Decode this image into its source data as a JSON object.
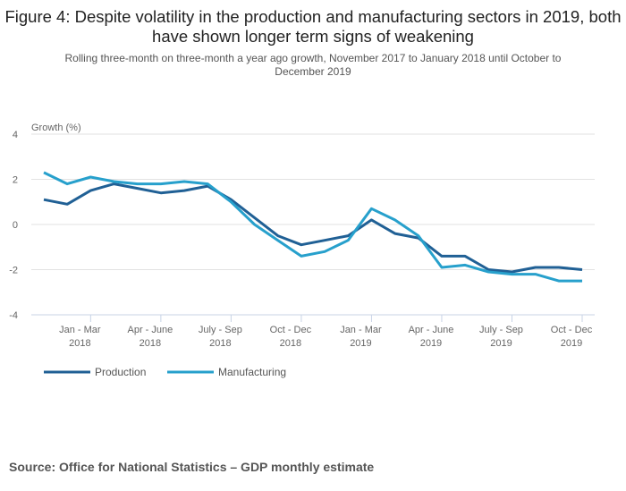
{
  "title": "Figure 4: Despite volatility in the production and manufacturing sectors in 2019, both have shown longer term signs of weakening",
  "subtitle": "Rolling three-month on three-month a year ago growth, November 2017 to January 2018 until October to December 2019",
  "source": "Source: Office for National Statistics – GDP monthly estimate",
  "chart_data": {
    "type": "line",
    "title": "Figure 4: Despite volatility in the production and manufacturing sectors in 2019, both have shown longer term signs of weakening",
    "ylabel": "Growth (%)",
    "ylim": [
      -4,
      4
    ],
    "yticks": [
      4,
      2,
      0,
      -2,
      -4
    ],
    "grid": true,
    "legend_position": "bottom-left",
    "x": [
      "Nov - Jan 2018",
      "Dec - Feb 2018",
      "Jan - Mar 2018",
      "Feb - Apr 2018",
      "Mar - May 2018",
      "Apr - June 2018",
      "May - July 2018",
      "June - Aug 2018",
      "July - Sep 2018",
      "Aug - Oct 2018",
      "Sep - Nov 2018",
      "Oct - Dec 2018",
      "Nov - Jan 2019",
      "Dec - Feb 2019",
      "Jan - Mar 2019",
      "Feb - Apr 2019",
      "Mar - May 2019",
      "Apr - June 2019",
      "May - July 2019",
      "June - Aug 2019",
      "July - Sep 2019",
      "Aug - Oct 2019",
      "Sep - Nov 2019",
      "Oct - Dec 2019"
    ],
    "xticks": [
      {
        "index": 2,
        "line1": "Jan - Mar",
        "line2": "2018"
      },
      {
        "index": 5,
        "line1": "Apr - June",
        "line2": "2018"
      },
      {
        "index": 8,
        "line1": "July - Sep",
        "line2": "2018"
      },
      {
        "index": 11,
        "line1": "Oct - Dec",
        "line2": "2018"
      },
      {
        "index": 14,
        "line1": "Jan - Mar",
        "line2": "2019"
      },
      {
        "index": 17,
        "line1": "Apr - June",
        "line2": "2019"
      },
      {
        "index": 20,
        "line1": "July - Sep",
        "line2": "2019"
      },
      {
        "index": 23,
        "line1": "Oct - Dec",
        "line2": "2019"
      }
    ],
    "series": [
      {
        "name": "Production",
        "color": "#206095",
        "values": [
          1.1,
          0.9,
          1.5,
          1.8,
          1.6,
          1.4,
          1.5,
          1.7,
          1.1,
          0.3,
          -0.5,
          -0.9,
          -0.7,
          -0.5,
          0.2,
          -0.4,
          -0.6,
          -1.4,
          -1.4,
          -2.0,
          -2.1,
          -1.9,
          -1.9,
          -2.0
        ]
      },
      {
        "name": "Manufacturing",
        "color": "#27a0cc",
        "values": [
          2.3,
          1.8,
          2.1,
          1.9,
          1.8,
          1.8,
          1.9,
          1.8,
          1.0,
          0.0,
          -0.7,
          -1.4,
          -1.2,
          -0.7,
          0.7,
          0.2,
          -0.5,
          -1.9,
          -1.8,
          -2.1,
          -2.2,
          -2.2,
          -2.5,
          -2.5
        ]
      }
    ]
  }
}
